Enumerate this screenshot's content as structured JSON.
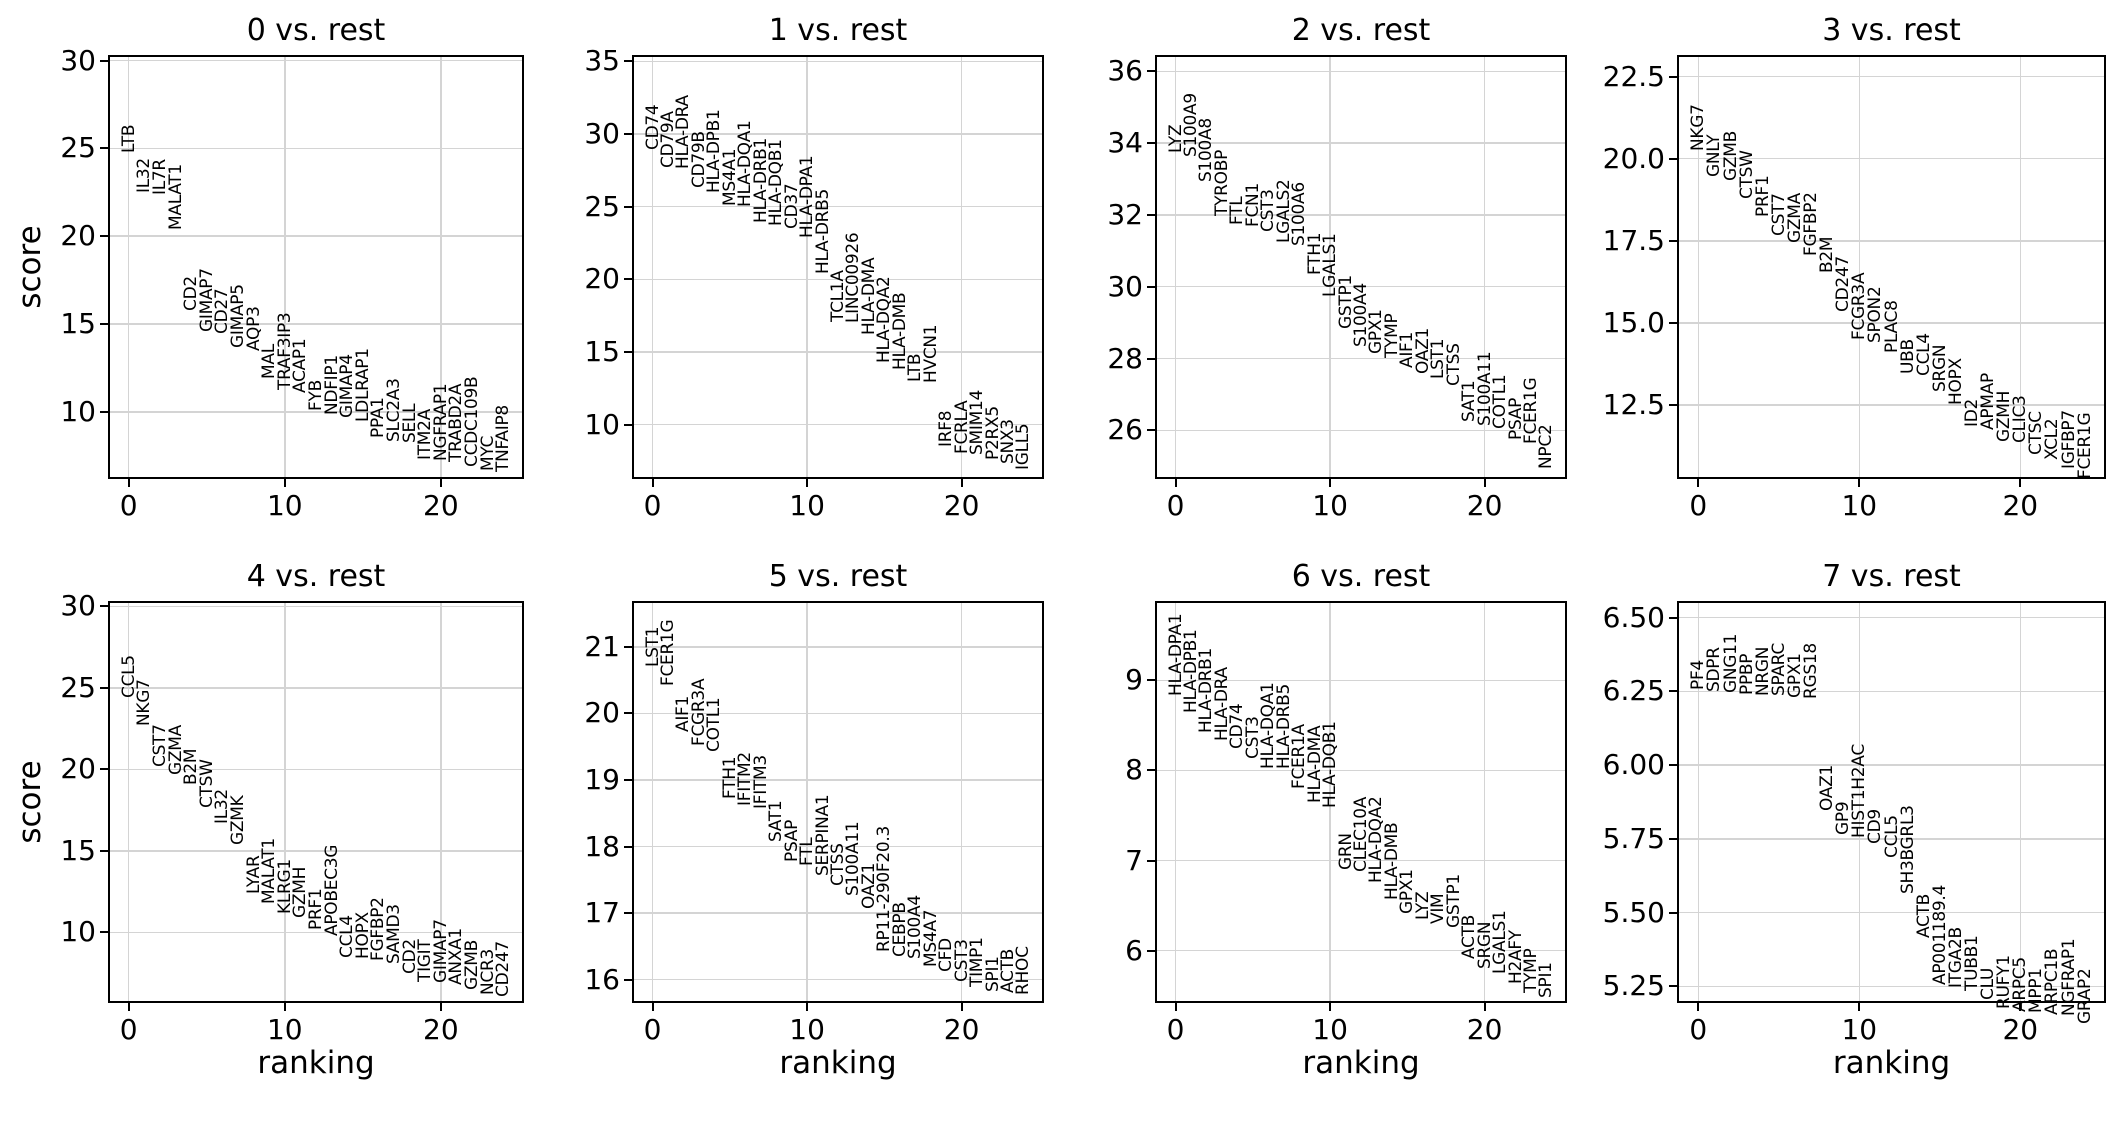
{
  "style": {
    "background": "#ffffff",
    "axis_color": "#000000",
    "grid_color": "#d4d4d4",
    "text_color": "#000000"
  },
  "ranking_values": [
    0,
    1,
    2,
    3,
    4,
    5,
    6,
    7,
    8,
    9,
    10,
    11,
    12,
    13,
    14,
    15,
    16,
    17,
    18,
    19,
    20,
    21,
    22,
    23,
    24
  ],
  "chart_data": [
    {
      "type": "scatter",
      "title": "0 vs. rest",
      "xlabel": "ranking",
      "ylabel": "score",
      "grid": true,
      "xlim": [
        -1.2,
        25.2
      ],
      "xticks": [
        0,
        10,
        20
      ],
      "xtick_labels": [
        "0",
        "10",
        "20"
      ],
      "ylim": [
        6.3,
        30.2
      ],
      "yticks": [
        10,
        15,
        20,
        25,
        30
      ],
      "ytick_labels": [
        "10",
        "15",
        "20",
        "25",
        "30"
      ],
      "genes": [
        "LTB",
        "IL32",
        "IL7R",
        "MALAT1",
        "CD2",
        "GIMAP7",
        "CD27",
        "GIMAP5",
        "AQP3",
        "MAL",
        "TRAF3IP3",
        "ACAP1",
        "FYB",
        "NDFIP1",
        "GIMAP4",
        "LDLRAP1",
        "PPA1",
        "SLC2A3",
        "SELL",
        "ITM2A",
        "NGFRAP1",
        "TRABD2A",
        "CCDC109B",
        "MYC",
        "TNFAIP8"
      ],
      "scores": [
        24.7,
        22.4,
        22.3,
        20.3,
        15.7,
        14.5,
        14.4,
        13.6,
        13.4,
        11.8,
        11.2,
        11.0,
        10.0,
        9.75,
        9.6,
        9.4,
        8.45,
        8.25,
        8.15,
        7.2,
        7.15,
        7.1,
        6.8,
        6.6,
        6.5
      ]
    },
    {
      "type": "scatter",
      "title": "1 vs. rest",
      "xlabel": "ranking",
      "ylabel": "score",
      "grid": true,
      "xlim": [
        -1.2,
        25.2
      ],
      "xticks": [
        0,
        10,
        20
      ],
      "xtick_labels": [
        "0",
        "10",
        "20"
      ],
      "ylim": [
        6.4,
        35.3
      ],
      "yticks": [
        10,
        15,
        20,
        25,
        30,
        35
      ],
      "ytick_labels": [
        "10",
        "15",
        "20",
        "25",
        "30",
        "35"
      ],
      "genes": [
        "CD74",
        "CD79A",
        "HLA-DRA",
        "CD79B",
        "HLA-DPB1",
        "MS4A1",
        "HLA-DQA1",
        "HLA-DRB1",
        "HLA-DQB1",
        "CD37",
        "HLA-DPA1",
        "HLA-DRB5",
        "TCL1A",
        "LINC00926",
        "HLA-DMA",
        "HLA-DQA2",
        "HLA-DMB",
        "LTB",
        "HVCN1",
        "IRF8",
        "FCRLA",
        "SMIM14",
        "P2RX5",
        "SNX3",
        "IGLL5"
      ],
      "scores": [
        28.8,
        27.6,
        27.5,
        26.2,
        25.9,
        25.0,
        24.9,
        23.8,
        23.6,
        23.4,
        22.8,
        20.3,
        17.0,
        16.9,
        16.1,
        14.2,
        13.7,
        12.9,
        12.8,
        8.4,
        7.9,
        7.85,
        7.5,
        7.2,
        6.8
      ]
    },
    {
      "type": "scatter",
      "title": "2 vs. rest",
      "xlabel": "ranking",
      "ylabel": "score",
      "grid": true,
      "xlim": [
        -1.2,
        25.2
      ],
      "xticks": [
        0,
        10,
        20
      ],
      "xtick_labels": [
        "0",
        "10",
        "20"
      ],
      "ylim": [
        24.7,
        36.4
      ],
      "yticks": [
        26,
        28,
        30,
        32,
        34,
        36
      ],
      "ytick_labels": [
        "26",
        "28",
        "30",
        "32",
        "34",
        "36"
      ],
      "genes": [
        "LYZ",
        "S100A9",
        "S100A8",
        "TYROBP",
        "FTL",
        "FCN1",
        "CST3",
        "LGALS2",
        "S100A6",
        "FTH1",
        "LGALS1",
        "GSTP1",
        "S100A4",
        "GPX1",
        "TYMP",
        "AIF1",
        "OAZ1",
        "LST1",
        "CTSS",
        "SAT1",
        "S100A11",
        "COTL1",
        "PSAP",
        "FCER1G",
        "NPC2"
      ],
      "scores": [
        33.7,
        33.6,
        32.9,
        31.95,
        31.7,
        31.65,
        31.5,
        31.2,
        31.1,
        30.3,
        29.7,
        28.8,
        28.3,
        28.1,
        28.0,
        27.7,
        27.55,
        27.4,
        27.2,
        26.2,
        26.1,
        26.0,
        25.7,
        25.6,
        24.9
      ]
    },
    {
      "type": "scatter",
      "title": "3 vs. rest",
      "xlabel": "ranking",
      "ylabel": "score",
      "grid": true,
      "xlim": [
        -1.2,
        25.2
      ],
      "xticks": [
        0,
        10,
        20
      ],
      "xtick_labels": [
        "0",
        "10",
        "20"
      ],
      "ylim": [
        10.3,
        23.1
      ],
      "yticks": [
        12.5,
        15.0,
        17.5,
        20.0,
        22.5
      ],
      "ytick_labels": [
        "12.5",
        "15.0",
        "17.5",
        "20.0",
        "22.5"
      ],
      "genes": [
        "NKG7",
        "GNLY",
        "GZMB",
        "CTSW",
        "PRF1",
        "CST7",
        "GZMA",
        "FGFBP2",
        "B2M",
        "CD247",
        "FCGR3A",
        "SPON2",
        "PLAC8",
        "UBB",
        "CCL4",
        "SRGN",
        "HOPX",
        "ID2",
        "APMAP",
        "GZMH",
        "CLIC3",
        "CTSC",
        "XCL2",
        "IGFBP7",
        "FCER1G"
      ],
      "scores": [
        20.2,
        19.4,
        19.3,
        18.75,
        18.2,
        17.6,
        17.4,
        17.0,
        16.5,
        15.3,
        14.45,
        14.35,
        14.05,
        13.4,
        13.35,
        12.85,
        12.45,
        11.8,
        11.7,
        11.35,
        11.3,
        10.95,
        10.8,
        10.5,
        10.2
      ]
    },
    {
      "type": "scatter",
      "title": "4 vs. rest",
      "xlabel": "ranking",
      "ylabel": "score",
      "grid": true,
      "xlim": [
        -1.2,
        25.2
      ],
      "xticks": [
        0,
        10,
        20
      ],
      "xtick_labels": [
        "0",
        "10",
        "20"
      ],
      "ylim": [
        5.8,
        30.2
      ],
      "yticks": [
        10,
        15,
        20,
        25,
        30
      ],
      "ytick_labels": [
        "10",
        "15",
        "20",
        "25",
        "30"
      ],
      "genes": [
        "CCL5",
        "NKG7",
        "CST7",
        "GZMA",
        "B2M",
        "CTSW",
        "IL32",
        "GZMK",
        "LYAR",
        "MALAT1",
        "KLRG1",
        "GZMH",
        "PRF1",
        "APOBEC3G",
        "CCL4",
        "HOPX",
        "FGFBP2",
        "SAMD3",
        "CD2",
        "TIGIT",
        "GIMAP7",
        "ANXA1",
        "GZMB",
        "NCR3",
        "CD247"
      ],
      "scores": [
        24.3,
        22.6,
        20.1,
        19.6,
        19.0,
        17.6,
        16.6,
        15.3,
        12.3,
        11.7,
        11.1,
        10.8,
        10.1,
        9.7,
        8.4,
        8.3,
        8.2,
        8.0,
        7.4,
        6.9,
        6.85,
        6.7,
        6.4,
        6.1,
        6.0
      ]
    },
    {
      "type": "scatter",
      "title": "5 vs. rest",
      "xlabel": "ranking",
      "ylabel": "score",
      "grid": true,
      "xlim": [
        -1.2,
        25.2
      ],
      "xticks": [
        0,
        10,
        20
      ],
      "xtick_labels": [
        "0",
        "10",
        "20"
      ],
      "ylim": [
        15.68,
        21.66
      ],
      "yticks": [
        16,
        17,
        18,
        19,
        20,
        21
      ],
      "ytick_labels": [
        "16",
        "17",
        "18",
        "19",
        "20",
        "21"
      ],
      "genes": [
        "LST1",
        "FCER1G",
        "AIF1",
        "FCGR3A",
        "COTL1",
        "FTH1",
        "IFITM2",
        "IFITM3",
        "SAT1",
        "PSAP",
        "FTL",
        "SERPINA1",
        "CTSS",
        "S100A11",
        "OAZ1",
        "RP11-290F20.3",
        "CEBPB",
        "S100A4",
        "MS4A7",
        "CFD",
        "CST3",
        "TIMP1",
        "SPI1",
        "ACTB",
        "RHOC"
      ],
      "scores": [
        20.68,
        20.4,
        19.7,
        19.5,
        19.4,
        18.7,
        18.6,
        18.55,
        18.05,
        17.75,
        17.7,
        17.55,
        17.4,
        17.25,
        17.05,
        16.4,
        16.33,
        16.3,
        16.17,
        16.1,
        15.95,
        15.88,
        15.8,
        15.78,
        15.76
      ]
    },
    {
      "type": "scatter",
      "title": "6 vs. rest",
      "xlabel": "ranking",
      "ylabel": "score",
      "grid": true,
      "xlim": [
        -1.2,
        25.2
      ],
      "xticks": [
        0,
        10,
        20
      ],
      "xtick_labels": [
        "0",
        "10",
        "20"
      ],
      "ylim": [
        5.44,
        9.86
      ],
      "yticks": [
        6,
        7,
        8,
        9
      ],
      "ytick_labels": [
        "6",
        "7",
        "8",
        "9"
      ],
      "genes": [
        "HLA-DPA1",
        "HLA-DPB1",
        "HLA-DRB1",
        "HLA-DRA",
        "CD74",
        "CST3",
        "HLA-DQA1",
        "HLA-DRB5",
        "FCER1A",
        "HLA-DMA",
        "HLA-DQB1",
        "GRN",
        "CLEC10A",
        "HLA-DQA2",
        "HLA-DMB",
        "GPX1",
        "LYZ",
        "VIM",
        "GSTP1",
        "ACTB",
        "SRGN",
        "LGALS1",
        "H2AFY",
        "TYMP",
        "SPI1"
      ],
      "scores": [
        8.82,
        8.63,
        8.41,
        8.32,
        8.23,
        8.12,
        8.01,
        8.0,
        7.78,
        7.63,
        7.57,
        6.88,
        6.86,
        6.74,
        6.55,
        6.39,
        6.33,
        6.28,
        6.24,
        5.89,
        5.78,
        5.73,
        5.62,
        5.52,
        5.46
      ]
    },
    {
      "type": "scatter",
      "title": "7 vs. rest",
      "xlabel": "ranking",
      "ylabel": "score",
      "grid": true,
      "xlim": [
        -1.2,
        25.2
      ],
      "xticks": [
        0,
        10,
        20
      ],
      "xtick_labels": [
        "0",
        "10",
        "20"
      ],
      "ylim": [
        5.2,
        6.55
      ],
      "yticks": [
        5.25,
        5.5,
        5.75,
        6.0,
        6.25,
        6.5
      ],
      "ytick_labels": [
        "5.25",
        "5.50",
        "5.75",
        "6.00",
        "6.25",
        "6.50"
      ],
      "genes": [
        "PF4",
        "SDPR",
        "GNG11",
        "PPBP",
        "NRGN",
        "SPARC",
        "GPX1",
        "RGS18",
        "OAZ1",
        "GP9",
        "HIST1H2AC",
        "CD9",
        "CCL5",
        "SH3BGRL3",
        "ACTB",
        "AP001189.4",
        "ITGA2B",
        "TUBB1",
        "CLU",
        "RUFY1",
        "ARPC5",
        "MPP1",
        "ARPC1B",
        "NGFRAP1",
        "GRAP2"
      ],
      "scores": [
        6.25,
        6.245,
        6.24,
        6.235,
        6.23,
        6.23,
        6.225,
        6.22,
        5.84,
        5.76,
        5.75,
        5.73,
        5.68,
        5.56,
        5.41,
        5.25,
        5.24,
        5.23,
        5.2,
        5.17,
        5.16,
        5.155,
        5.15,
        5.145,
        5.12
      ]
    }
  ]
}
